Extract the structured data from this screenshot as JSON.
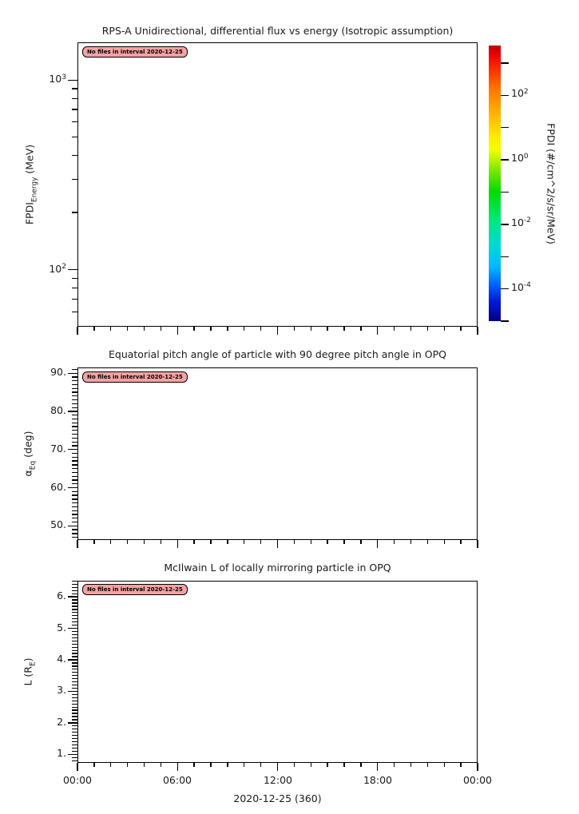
{
  "page": {
    "background": "#FFFFFF",
    "text_color": "#1A1A1A"
  },
  "annotation_style": {
    "background": "#F4A2A2",
    "border": "#000000"
  },
  "xaxis": {
    "ticklabels": [
      "00:00",
      "06:00",
      "12:00",
      "18:00",
      "00:00"
    ],
    "title": "2020-12-25 (360)",
    "major_tick_interval_hours": 6,
    "minor_tick_interval_hours": 1
  },
  "chart_data": [
    {
      "type": "heatmap",
      "title": "RPS-A Unidirectional, differential flux vs energy (Isotropic assumption)",
      "ylabel": {
        "main": "FPDI",
        "sub": "Energy",
        "rest": " (MeV)"
      },
      "yscale": "log",
      "ylim": [
        50,
        1580
      ],
      "yticks": [
        {
          "value": 1000,
          "base": "10",
          "exp": "3"
        },
        {
          "value": 100,
          "base": "10",
          "exp": "2"
        }
      ],
      "xlim_hours": [
        0,
        24
      ],
      "annotation": "No files in interval 2020-12-25",
      "series": [],
      "colorbar": {
        "label": "FPDI (#/cm^2/s/sr/MeV)",
        "scale": "log",
        "range": [
          1e-05,
          3500
        ],
        "tick_decades": [
          3,
          2,
          1,
          0,
          -1,
          -2,
          -3,
          -4,
          -5
        ],
        "labeled_ticks": [
          {
            "value": 100,
            "base": "10",
            "exp": "2"
          },
          {
            "value": 1,
            "base": "10",
            "exp": "0"
          },
          {
            "value": 0.01,
            "base": "10",
            "exp": "-2"
          },
          {
            "value": 0.0001,
            "base": "10",
            "exp": "-4"
          }
        ],
        "gradient": [
          {
            "pos": 0,
            "color": "#BE0000"
          },
          {
            "pos": 3,
            "color": "#E80000"
          },
          {
            "pos": 8,
            "color": "#FF2800"
          },
          {
            "pos": 16,
            "color": "#FF7800"
          },
          {
            "pos": 25,
            "color": "#FFB400"
          },
          {
            "pos": 33,
            "color": "#FFEC00"
          },
          {
            "pos": 38,
            "color": "#F0FF00"
          },
          {
            "pos": 45,
            "color": "#80EA00"
          },
          {
            "pos": 53,
            "color": "#00DC00"
          },
          {
            "pos": 63,
            "color": "#00E878"
          },
          {
            "pos": 72,
            "color": "#00DCD0"
          },
          {
            "pos": 80,
            "color": "#00BCFF"
          },
          {
            "pos": 87,
            "color": "#0060FF"
          },
          {
            "pos": 93,
            "color": "#0018D8"
          },
          {
            "pos": 100,
            "color": "#000082"
          }
        ]
      }
    },
    {
      "type": "line",
      "title": "Equatorial pitch angle of particle with 90 degree pitch angle in OPQ",
      "ylabel": {
        "main": "α",
        "sub": "Eq",
        "rest": " (deg)"
      },
      "yscale": "linear",
      "ylim": [
        46.3,
        91.5
      ],
      "yticks": [
        {
          "value": 90,
          "label": "90."
        },
        {
          "value": 80,
          "label": "80."
        },
        {
          "value": 70,
          "label": "70."
        },
        {
          "value": 60,
          "label": "60."
        },
        {
          "value": 50,
          "label": "50."
        }
      ],
      "yminor_step": 1,
      "xlim_hours": [
        0,
        24
      ],
      "annotation": "No files in interval 2020-12-25",
      "series": []
    },
    {
      "type": "line",
      "title": "McIlwain L of locally mirroring particle in OPQ",
      "ylabel": {
        "main": "L (R",
        "sub": "E",
        "rest": ")"
      },
      "yscale": "linear",
      "ylim": [
        0.73,
        6.51
      ],
      "yticks": [
        {
          "value": 6,
          "label": "6."
        },
        {
          "value": 5,
          "label": "5."
        },
        {
          "value": 4,
          "label": "4."
        },
        {
          "value": 3,
          "label": "3."
        },
        {
          "value": 2,
          "label": "2."
        },
        {
          "value": 1,
          "label": "1."
        }
      ],
      "yminor_step": 0.1,
      "xlim_hours": [
        0,
        24
      ],
      "annotation": "No files in interval 2020-12-25",
      "series": []
    }
  ]
}
